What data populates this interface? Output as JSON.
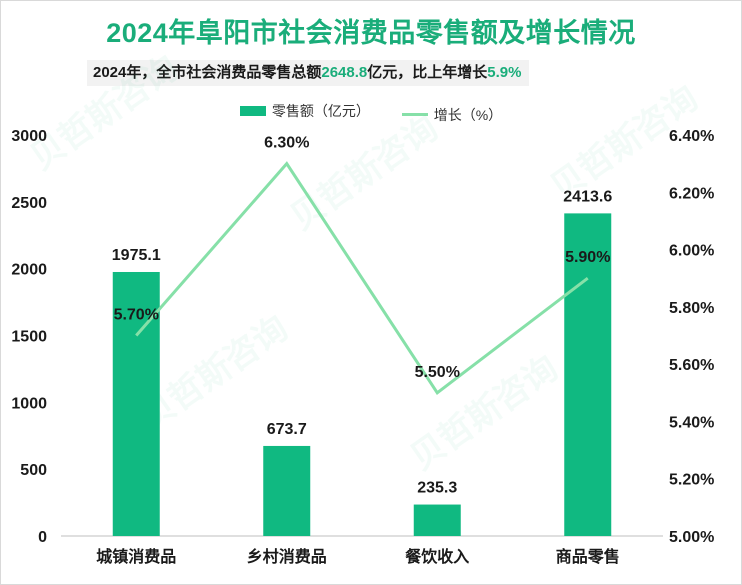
{
  "title": "2024年阜阳市社会消费品零售额及增长情况",
  "subtitle": {
    "prefix": "2024年，全市社会消费品零售总额",
    "total": "2648.8",
    "mid": "亿元，比上年增长",
    "growth": "5.9%"
  },
  "colors": {
    "title": "#1aad7a",
    "bar": "#10b981",
    "line": "#86e0a8",
    "highlight": "#1aad7a"
  },
  "chart_data": {
    "type": "bar",
    "categories": [
      "城镇消费品",
      "乡村消费品",
      "餐饮收入",
      "商品零售"
    ],
    "series": [
      {
        "name": "零售额（亿元）",
        "type": "bar",
        "axis": "left",
        "values": [
          1975.1,
          673.7,
          235.3,
          2413.6
        ],
        "labels": [
          "1975.1",
          "673.7",
          "235.3",
          "2413.6"
        ]
      },
      {
        "name": "增长（%）",
        "type": "line",
        "axis": "right",
        "values": [
          5.7,
          6.3,
          5.5,
          5.9
        ],
        "labels": [
          "5.70%",
          "6.30%",
          "5.50%",
          "5.90%"
        ]
      }
    ],
    "y_left": {
      "min": 0,
      "max": 3000,
      "ticks": [
        0,
        500,
        1000,
        1500,
        2000,
        2500,
        3000
      ],
      "tick_labels": [
        "0",
        "500",
        "1000",
        "1500",
        "2000",
        "2500",
        "3000"
      ]
    },
    "y_right": {
      "min": 5.0,
      "max": 6.4,
      "ticks": [
        5.0,
        5.2,
        5.4,
        5.6,
        5.8,
        6.0,
        6.2,
        6.4
      ],
      "tick_labels": [
        "5.00%",
        "5.20%",
        "5.40%",
        "5.60%",
        "5.80%",
        "6.00%",
        "6.20%",
        "6.40%"
      ]
    },
    "legend_position": "top-center",
    "grid": false
  }
}
